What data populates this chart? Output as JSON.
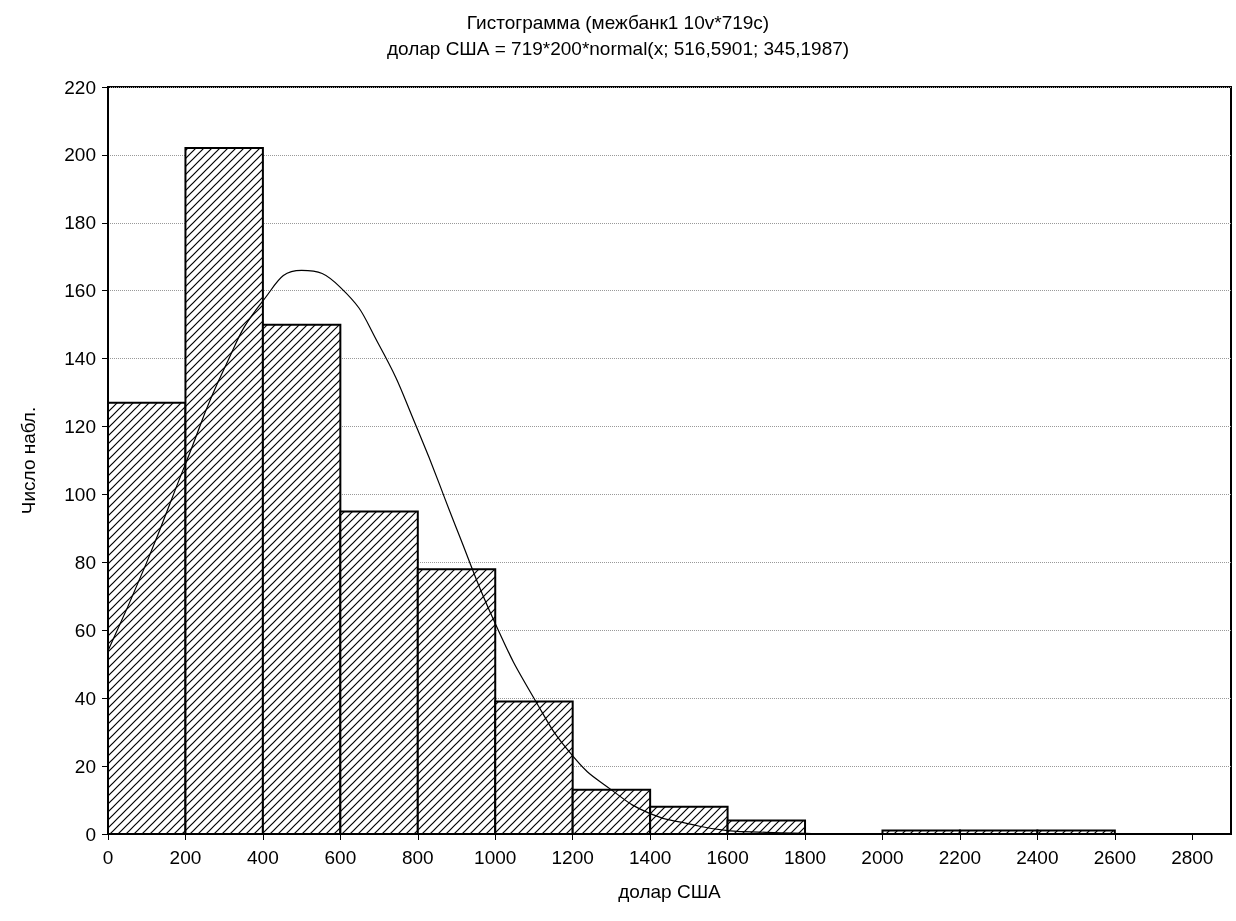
{
  "chart_data": {
    "type": "histogram",
    "title": "Гистограмма (межбанк1 10v*719c)",
    "subtitle": "долар США = 719*200*normal(x; 516,5901; 345,1987)",
    "xlabel": "долар США",
    "ylabel": "Число набл.",
    "bins": [
      0,
      200,
      400,
      600,
      800,
      1000,
      1200,
      1400,
      1600,
      1800,
      2000,
      2200,
      2400,
      2600
    ],
    "values": [
      127,
      202,
      150,
      95,
      78,
      39,
      13,
      8,
      4,
      0,
      1,
      1,
      1
    ],
    "color": "#000000",
    "series": [
      {
        "type": "line",
        "color": "#000000",
        "x": [
          0,
          100,
          200,
          300,
          400,
          500,
          600,
          700,
          800,
          900,
          1000,
          1100,
          1200,
          1300,
          1400,
          1500,
          1600,
          1700,
          1800,
          1900,
          2000
        ],
        "values": [
          54,
          80,
          109,
          137,
          157,
          166,
          161,
          144,
          119,
          90,
          62,
          40,
          23,
          13,
          6,
          3,
          1,
          0.5,
          0.2,
          0,
          0
        ]
      }
    ],
    "xlim": [
      0,
      2900
    ],
    "xticks": [
      0,
      200,
      400,
      600,
      800,
      1000,
      1200,
      1400,
      1600,
      1800,
      2000,
      2200,
      2400,
      2600,
      2800
    ],
    "ylim": [
      0,
      220
    ],
    "yticks": [
      0,
      20,
      40,
      60,
      80,
      100,
      120,
      140,
      160,
      180,
      200,
      220
    ],
    "grid": "y",
    "marker": "none",
    "line_style": "solid"
  }
}
